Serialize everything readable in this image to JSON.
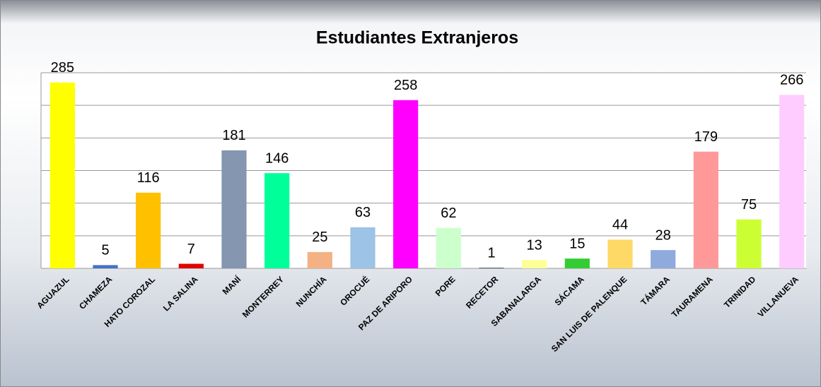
{
  "chart_data": {
    "type": "bar",
    "title": "Estudiantes Extranjeros",
    "categories": [
      "AGUAZUL",
      "CHAMEZA",
      "HATO COROZAL",
      "LA SALINA",
      "MANÍ",
      "MONTERREY",
      "NUNCHÍA",
      "OROCUÉ",
      "PAZ DE ARIPORO",
      "PORE",
      "RECETOR",
      "SABANALARGA",
      "SÁCAMA",
      "SAN LUIS DE PALENQUE",
      "TÁMARA",
      "TAURAMENA",
      "TRINIDAD",
      "VILLANUEVA"
    ],
    "values": [
      285,
      5,
      116,
      7,
      181,
      146,
      25,
      63,
      258,
      62,
      1,
      13,
      15,
      44,
      28,
      179,
      75,
      266
    ],
    "colors": [
      "#ffff00",
      "#4472c4",
      "#ffc000",
      "#e00000",
      "#8496b0",
      "#00ff99",
      "#f4b183",
      "#9dc3e6",
      "#ff00ff",
      "#ccffcc",
      "#44546a",
      "#ffff99",
      "#33cc33",
      "#ffd966",
      "#8faadc",
      "#ff9999",
      "#ccff33",
      "#ffccff"
    ],
    "ylim": [
      0,
      300
    ],
    "yticks": [
      0,
      50,
      100,
      150,
      200,
      250,
      300
    ],
    "grid": true
  }
}
